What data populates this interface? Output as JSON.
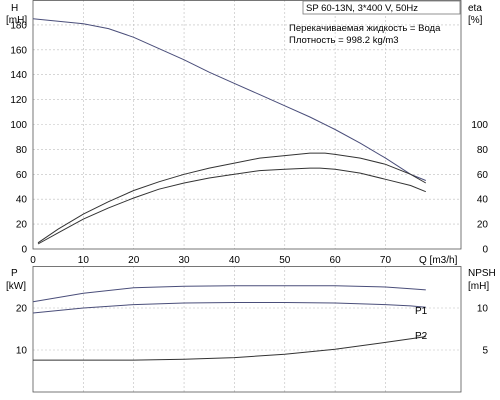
{
  "chart_data": [
    {
      "type": "line",
      "title": "SP 60-13N, 3*400 V, 50Hz",
      "annotations": [
        "Перекачиваемая жидкость = Вода",
        "Плотность = 998.2 kg/m3"
      ],
      "xlabel": "Q [m3/h]",
      "xlim": [
        0,
        85
      ],
      "x_ticks": [
        0,
        10,
        20,
        30,
        40,
        50,
        60,
        70
      ],
      "y_left": {
        "label_line1": "H",
        "label_line2": "[mH]",
        "lim": [
          0,
          200
        ],
        "ticks": [
          0,
          20,
          40,
          60,
          80,
          100,
          120,
          140,
          160,
          180
        ]
      },
      "y_right": {
        "label_line1": "eta",
        "label_line2": "[%]",
        "lim": [
          0,
          200
        ],
        "ticks": [
          0,
          20,
          40,
          60,
          80,
          100
        ]
      },
      "grid": true,
      "series": [
        {
          "axis": "left",
          "color": "#4a4e7a",
          "x": [
            0,
            5,
            10,
            15,
            20,
            25,
            30,
            35,
            40,
            45,
            50,
            55,
            60,
            65,
            70,
            75,
            78
          ],
          "y": [
            185,
            183,
            181,
            177,
            170,
            161,
            152,
            142,
            133,
            124,
            115,
            106,
            96,
            85,
            73,
            60,
            55
          ]
        },
        {
          "axis": "right",
          "color": "#333333",
          "x": [
            1,
            5,
            10,
            15,
            20,
            25,
            30,
            35,
            40,
            45,
            50,
            55,
            58,
            60,
            65,
            70,
            75,
            78
          ],
          "y": [
            5,
            16,
            28,
            38,
            47,
            54,
            60,
            65,
            69,
            73,
            75,
            77,
            77,
            76,
            73,
            68,
            60,
            53
          ]
        },
        {
          "axis": "right",
          "color": "#333333",
          "x": [
            1,
            5,
            10,
            15,
            20,
            25,
            30,
            35,
            40,
            45,
            50,
            55,
            57,
            60,
            65,
            70,
            75,
            78
          ],
          "y": [
            4,
            13,
            24,
            33,
            41,
            48,
            53,
            57,
            60,
            63,
            64,
            65,
            65,
            64,
            61,
            56,
            51,
            46
          ]
        }
      ]
    },
    {
      "type": "line",
      "xlim": [
        0,
        85
      ],
      "x_ticks": [
        0,
        10,
        20,
        30,
        40,
        50,
        60,
        70
      ],
      "y_left": {
        "label_line1": "P",
        "label_line2": "[kW]",
        "lim": [
          0,
          30
        ],
        "ticks": [
          10,
          20
        ]
      },
      "y_right": {
        "label_line1": "NPSH",
        "label_line2": "[mH]",
        "lim": [
          0,
          15
        ],
        "ticks": [
          5,
          10
        ]
      },
      "grid": true,
      "series": [
        {
          "name": "P1",
          "axis": "left",
          "color": "#4a4e7a",
          "x": [
            0,
            10,
            20,
            30,
            40,
            50,
            60,
            70,
            75,
            78
          ],
          "y": [
            21.5,
            23.5,
            24.8,
            25.2,
            25.3,
            25.3,
            25.3,
            25.0,
            24.6,
            24.3
          ]
        },
        {
          "name": "P2",
          "axis": "left",
          "color": "#4a4e7a",
          "x": [
            0,
            10,
            20,
            30,
            40,
            50,
            60,
            70,
            75,
            78
          ],
          "y": [
            18.8,
            20.0,
            20.8,
            21.2,
            21.3,
            21.3,
            21.2,
            20.8,
            20.5,
            20.2
          ]
        },
        {
          "axis": "right",
          "color": "#333333",
          "x": [
            0,
            10,
            20,
            30,
            40,
            50,
            60,
            70,
            78
          ],
          "y": [
            3.8,
            3.8,
            3.8,
            3.9,
            4.1,
            4.5,
            5.1,
            5.9,
            6.6
          ]
        }
      ]
    }
  ]
}
